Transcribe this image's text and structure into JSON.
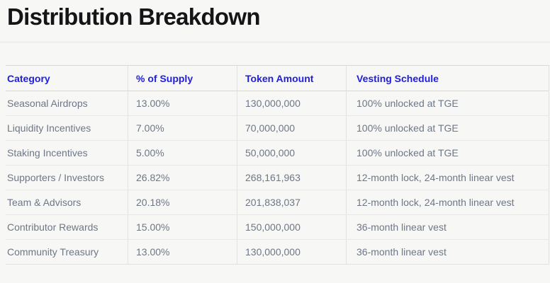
{
  "page": {
    "title": "Distribution Breakdown"
  },
  "colors": {
    "background": "#f7f7f5",
    "title_text": "#151518",
    "header_accent_blue": "#1e1de0",
    "body_text": "#6e7787",
    "divider": "#e6e5e2"
  },
  "table": {
    "headers": [
      "Category",
      "% of Supply",
      "Token Amount",
      "Vesting Schedule"
    ],
    "rows": [
      {
        "category": "Seasonal Airdrops",
        "supply_pct": "13.00%",
        "token_amount": "130,000,000",
        "vesting": "100% unlocked at TGE"
      },
      {
        "category": "Liquidity Incentives",
        "supply_pct": "7.00%",
        "token_amount": "70,000,000",
        "vesting": "100% unlocked at TGE"
      },
      {
        "category": "Staking Incentives",
        "supply_pct": "5.00%",
        "token_amount": "50,000,000",
        "vesting": "100% unlocked at TGE"
      },
      {
        "category": "Supporters / Investors",
        "supply_pct": "26.82%",
        "token_amount": "268,161,963",
        "vesting": "12-month lock, 24-month linear vest"
      },
      {
        "category": "Team & Advisors",
        "supply_pct": "20.18%",
        "token_amount": "201,838,037",
        "vesting": "12-month lock, 24-month linear vest"
      },
      {
        "category": "Contributor Rewards",
        "supply_pct": "15.00%",
        "token_amount": "150,000,000",
        "vesting": "36-month linear vest"
      },
      {
        "category": "Community Treasury",
        "supply_pct": "13.00%",
        "token_amount": "130,000,000",
        "vesting": "36-month linear vest"
      }
    ]
  }
}
